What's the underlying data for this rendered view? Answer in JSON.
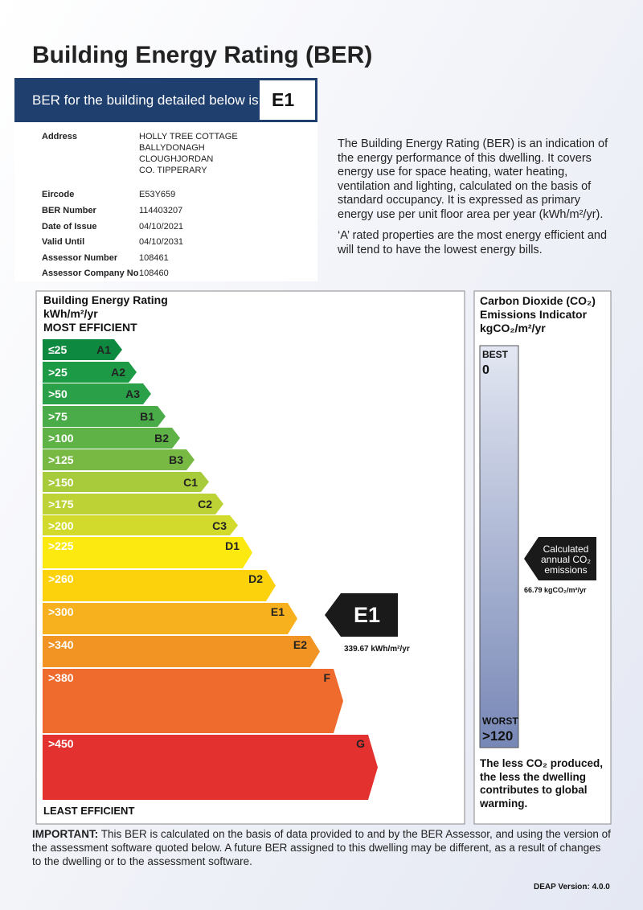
{
  "header": {
    "title": "Building Energy Rating (BER)",
    "banner_label": "BER for the building detailed below is:",
    "rating": "E1"
  },
  "details": {
    "rows": [
      {
        "label": "Address",
        "value": [
          "HOLLY TREE COTTAGE",
          "BALLYDONAGH",
          "CLOUGHJORDAN",
          "CO. TIPPERARY"
        ]
      },
      {
        "label": "Eircode",
        "value": [
          "E53Y659"
        ]
      },
      {
        "label": "BER Number",
        "value": [
          "114403207"
        ]
      },
      {
        "label": "Date of Issue",
        "value": [
          "04/10/2021"
        ]
      },
      {
        "label": "Valid Until",
        "value": [
          "04/10/2031"
        ]
      },
      {
        "label": "Assessor Number",
        "value": [
          "108461"
        ]
      },
      {
        "label": "Assessor Company No",
        "value": [
          "108460"
        ]
      }
    ]
  },
  "description": [
    "The Building Energy Rating (BER) is an indication of the energy performance of this dwelling.  It covers energy use for space heating, water heating, ventilation and lighting, calculated on the basis of standard occupancy. It is expressed as primary energy use per unit floor area per year (kWh/m²/yr).",
    "‘A’ rated properties are the most energy efficient and will tend to have the lowest energy bills."
  ],
  "rating_scale": {
    "title_lines": [
      "Building Energy Rating",
      "kWh/m²/yr",
      "MOST EFFICIENT"
    ],
    "bands": [
      {
        "range": "≤25",
        "grade": "A1",
        "color": "#0d8a3f"
      },
      {
        "range": ">25",
        "grade": "A2",
        "color": "#1c9a45"
      },
      {
        "range": ">50",
        "grade": "A3",
        "color": "#2aa048"
      },
      {
        "range": ">75",
        "grade": "B1",
        "color": "#4aac48"
      },
      {
        "range": ">100",
        "grade": "B2",
        "color": "#5fb246"
      },
      {
        "range": ">125",
        "grade": "B3",
        "color": "#78b944"
      },
      {
        "range": ">150",
        "grade": "C1",
        "color": "#a8cb3b"
      },
      {
        "range": ">175",
        "grade": "C2",
        "color": "#bcd235"
      },
      {
        "range": ">200",
        "grade": "C3",
        "color": "#d2da2c"
      },
      {
        "range": ">225",
        "grade": "D1",
        "color": "#fbe90f"
      },
      {
        "range": ">260",
        "grade": "D2",
        "color": "#fcd20d"
      },
      {
        "range": ">300",
        "grade": "E1",
        "color": "#f7b11e"
      },
      {
        "range": ">340",
        "grade": "E2",
        "color": "#f29423"
      },
      {
        "range": ">380",
        "grade": "F",
        "color": "#ef6b2d"
      },
      {
        "range": ">450",
        "grade": "G",
        "color": "#e3312f"
      }
    ],
    "footer": "LEAST EFFICIENT",
    "indicator": {
      "grade": "E1",
      "value": "339.67 kWh/m²/yr"
    }
  },
  "co2": {
    "title_lines": [
      "Carbon Dioxide (CO₂)",
      "Emissions Indicator",
      "kgCO₂/m²/yr"
    ],
    "best_label": "BEST",
    "best_value": "0",
    "worst_label": "WORST",
    "worst_value": ">120",
    "indicator": {
      "lines": [
        "Calculated",
        "annual CO₂",
        "emissions"
      ],
      "value": "66.79 kgCO₂/m²/yr"
    },
    "note": "The less CO₂ produced, the less the dwelling contributes to global warming."
  },
  "notice": {
    "lead": "IMPORTANT:",
    "text": " This BER is calculated on the basis of data provided to and by the BER Assessor, and using the version of the assessment software quoted below.  A future BER assigned to this dwelling may be different, as a result of changes to the dwelling or to the assessment software."
  },
  "version": "DEAP Version: 4.0.0"
}
